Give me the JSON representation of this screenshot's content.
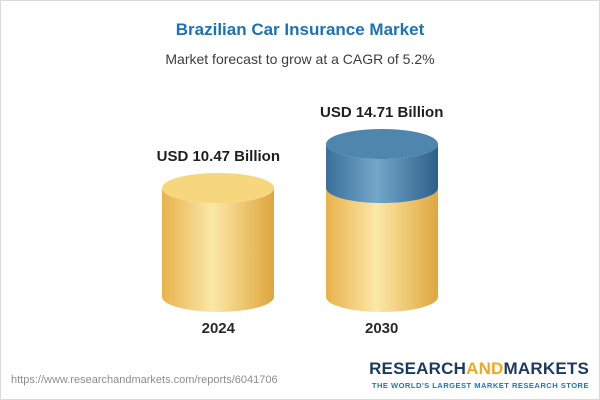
{
  "header": {
    "title": "Brazilian Car Insurance Market",
    "subtitle": "Market forecast to grow at a CAGR of 5.2%"
  },
  "chart_data": {
    "type": "bar",
    "title": "Brazilian Car Insurance Market",
    "subtitle": "Market forecast to grow at a CAGR of 5.2%",
    "cagr_percent": 5.2,
    "unit": "USD Billion",
    "categories": [
      "2024",
      "2030"
    ],
    "values": [
      10.47,
      14.71
    ],
    "value_labels": [
      "USD 10.47 Billion",
      "USD 14.71 Billion"
    ],
    "ylim": [
      0,
      16
    ],
    "grid": false,
    "legend": "none",
    "bars": [
      {
        "category": "2024",
        "total": 10.47,
        "segments": [
          {
            "color": "yellow",
            "value": 10.47
          }
        ]
      },
      {
        "category": "2030",
        "total": 14.71,
        "segments": [
          {
            "color": "yellow",
            "value": 10.47
          },
          {
            "color": "blue",
            "value": 4.24
          }
        ]
      }
    ],
    "colors": {
      "yellow": {
        "edge": "#E8B24C",
        "mid": "#FBE8A8",
        "edge2": "#DFA63C",
        "cap": "#F6D77E"
      },
      "blue": {
        "edge": "#3A7099",
        "mid": "#72A7C9",
        "edge2": "#2D6089",
        "cap": "#4E86AD"
      }
    }
  },
  "footer": {
    "url": "https://www.researchandmarkets.com/reports/6041706",
    "logo": {
      "research": "RESEARCH",
      "and": "AND",
      "markets": "MARKETS",
      "tagline": "THE WORLD'S LARGEST MARKET RESEARCH STORE"
    }
  }
}
